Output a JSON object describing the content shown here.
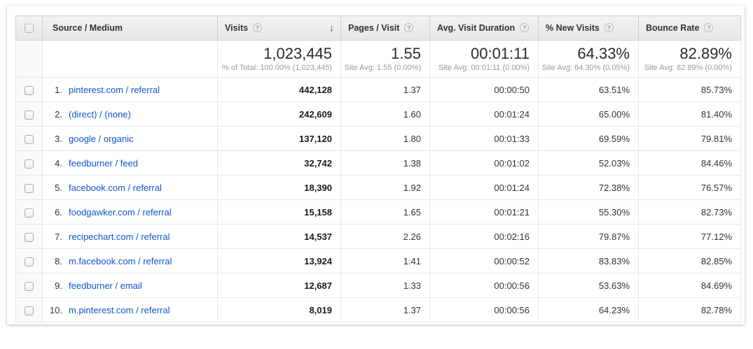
{
  "icons": {
    "help": "?",
    "sort_desc": "↓"
  },
  "colors": {
    "link": "#1155cc",
    "header_bg": "#ededed",
    "border": "#e6e6e6"
  },
  "header": {
    "source_medium": "Source / Medium",
    "visits": "Visits",
    "pages_visit": "Pages / Visit",
    "avg_duration": "Avg. Visit Duration",
    "new_visits": "% New Visits",
    "bounce_rate": "Bounce Rate"
  },
  "summary": {
    "visits": "1,023,445",
    "visits_sub": "% of Total: 100.00% (1,023,445)",
    "pages": "1.55",
    "pages_sub": "Site Avg: 1.55 (0.00%)",
    "duration": "00:01:11",
    "duration_sub": "Site Avg: 00:01:11 (0.00%)",
    "new_visits": "64.33%",
    "new_visits_sub": "Site Avg: 64.30% (0.05%)",
    "bounce": "82.89%",
    "bounce_sub": "Site Avg: 82.89% (0.00%)"
  },
  "rows": [
    {
      "index": "1.",
      "source": "pinterest.com / referral",
      "visits": "442,128",
      "pages": "1.37",
      "duration": "00:00:50",
      "new_visits": "63.51%",
      "bounce": "85.73%"
    },
    {
      "index": "2.",
      "source": "(direct) / (none)",
      "visits": "242,609",
      "pages": "1.60",
      "duration": "00:01:24",
      "new_visits": "65.00%",
      "bounce": "81.40%"
    },
    {
      "index": "3.",
      "source": "google / organic",
      "visits": "137,120",
      "pages": "1.80",
      "duration": "00:01:33",
      "new_visits": "69.59%",
      "bounce": "79.81%"
    },
    {
      "index": "4.",
      "source": "feedburner / feed",
      "visits": "32,742",
      "pages": "1.38",
      "duration": "00:01:02",
      "new_visits": "52.03%",
      "bounce": "84.46%"
    },
    {
      "index": "5.",
      "source": "facebook.com / referral",
      "visits": "18,390",
      "pages": "1.92",
      "duration": "00:01:24",
      "new_visits": "72.38%",
      "bounce": "76.57%"
    },
    {
      "index": "6.",
      "source": "foodgawker.com / referral",
      "visits": "15,158",
      "pages": "1.65",
      "duration": "00:01:21",
      "new_visits": "55.30%",
      "bounce": "82.73%"
    },
    {
      "index": "7.",
      "source": "recipechart.com / referral",
      "visits": "14,537",
      "pages": "2.26",
      "duration": "00:02:16",
      "new_visits": "79.87%",
      "bounce": "77.12%"
    },
    {
      "index": "8.",
      "source": "m.facebook.com / referral",
      "visits": "13,924",
      "pages": "1.41",
      "duration": "00:00:52",
      "new_visits": "83.83%",
      "bounce": "82.85%"
    },
    {
      "index": "9.",
      "source": "feedburner / email",
      "visits": "12,687",
      "pages": "1.33",
      "duration": "00:00:56",
      "new_visits": "53.63%",
      "bounce": "84.69%"
    },
    {
      "index": "10.",
      "source": "m.pinterest.com / referral",
      "visits": "8,019",
      "pages": "1.37",
      "duration": "00:00:56",
      "new_visits": "64.23%",
      "bounce": "82.78%"
    }
  ]
}
